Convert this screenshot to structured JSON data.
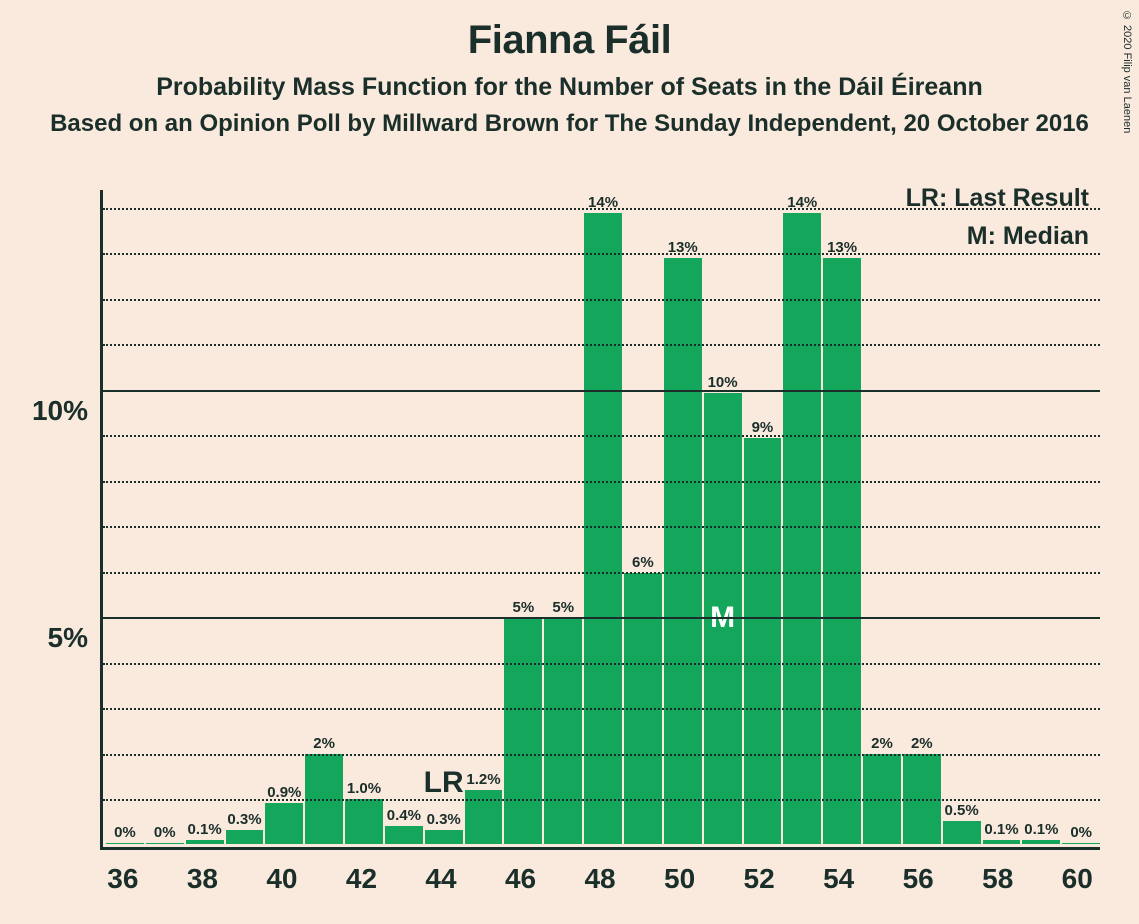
{
  "copyright": "© 2020 Filip van Laenen",
  "title": "Fianna Fáil",
  "subtitle1": "Probability Mass Function for the Number of Seats in the Dáil Éireann",
  "subtitle2": "Based on an Opinion Poll by Millward Brown for The Sunday Independent, 20 October 2016",
  "legend": {
    "lr": "LR: Last Result",
    "m": "M: Median"
  },
  "chart": {
    "type": "bar",
    "bar_color": "#14a65a",
    "background_color": "#fae9dd",
    "text_color": "#1a2e2a",
    "ylim": [
      0,
      14.5
    ],
    "y_major_ticks": [
      5,
      10
    ],
    "y_minor_step": 1,
    "y_tick_labels": {
      "5": "5%",
      "10": "10%"
    },
    "x_start": 36,
    "x_end": 60,
    "x_tick_step": 2,
    "bars": [
      {
        "x": 36,
        "value": 0,
        "label": "0%"
      },
      {
        "x": 37,
        "value": 0,
        "label": "0%"
      },
      {
        "x": 38,
        "value": 0.1,
        "label": "0.1%"
      },
      {
        "x": 39,
        "value": 0.3,
        "label": "0.3%"
      },
      {
        "x": 40,
        "value": 0.9,
        "label": "0.9%"
      },
      {
        "x": 41,
        "value": 2,
        "label": "2%"
      },
      {
        "x": 42,
        "value": 1.0,
        "label": "1.0%"
      },
      {
        "x": 43,
        "value": 0.4,
        "label": "0.4%"
      },
      {
        "x": 44,
        "value": 0.3,
        "label": "0.3%",
        "lr": true
      },
      {
        "x": 45,
        "value": 1.2,
        "label": "1.2%"
      },
      {
        "x": 46,
        "value": 5,
        "label": "5%"
      },
      {
        "x": 47,
        "value": 5,
        "label": "5%"
      },
      {
        "x": 48,
        "value": 14,
        "label": "14%"
      },
      {
        "x": 49,
        "value": 6,
        "label": "6%"
      },
      {
        "x": 50,
        "value": 13,
        "label": "13%"
      },
      {
        "x": 51,
        "value": 10,
        "label": "10%",
        "median": true
      },
      {
        "x": 52,
        "value": 9,
        "label": "9%"
      },
      {
        "x": 53,
        "value": 14,
        "label": "14%"
      },
      {
        "x": 54,
        "value": 13,
        "label": "13%"
      },
      {
        "x": 55,
        "value": 2,
        "label": "2%"
      },
      {
        "x": 56,
        "value": 2,
        "label": "2%"
      },
      {
        "x": 57,
        "value": 0.5,
        "label": "0.5%"
      },
      {
        "x": 58,
        "value": 0.1,
        "label": "0.1%"
      },
      {
        "x": 59,
        "value": 0.1,
        "label": "0.1%"
      },
      {
        "x": 60,
        "value": 0,
        "label": "0%"
      }
    ],
    "lr_text": "LR",
    "m_text": "M",
    "label_fontsize": 15,
    "axis_fontsize": 28,
    "title_fontsize": 40
  }
}
